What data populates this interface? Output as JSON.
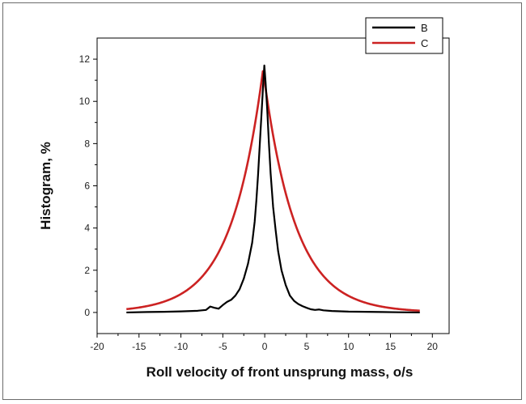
{
  "chart_data": {
    "type": "line",
    "xlabel": "Roll velocity of front unsprung mass, o/s",
    "ylabel": "Histogram, %",
    "xlim": [
      -20,
      22
    ],
    "ylim": [
      -1,
      13
    ],
    "xticks": [
      -20,
      -15,
      -10,
      -5,
      0,
      5,
      10,
      15,
      20
    ],
    "yticks": [
      0,
      2,
      4,
      6,
      8,
      10,
      12
    ],
    "grid": false,
    "legend_position": "top-right",
    "series": [
      {
        "name": "B",
        "color": "#000000",
        "x": [
          -16.5,
          -14,
          -12,
          -10,
          -8,
          -7,
          -6.5,
          -6,
          -5.5,
          -5,
          -4.5,
          -4,
          -3.5,
          -3,
          -2.5,
          -2,
          -1.5,
          -1.2,
          -1,
          -0.8,
          -0.6,
          -0.4,
          -0.2,
          -0.05,
          0.1,
          0.3,
          0.5,
          0.7,
          1,
          1.3,
          1.6,
          2,
          2.5,
          3,
          3.5,
          4,
          4.5,
          5,
          5.5,
          6,
          6.5,
          7,
          8,
          10,
          12,
          14,
          16,
          18.5
        ],
        "y": [
          0,
          0.02,
          0.03,
          0.05,
          0.08,
          0.12,
          0.28,
          0.22,
          0.18,
          0.35,
          0.5,
          0.6,
          0.8,
          1.1,
          1.6,
          2.3,
          3.3,
          4.3,
          5.3,
          6.5,
          7.9,
          9.3,
          10.7,
          11.7,
          10.9,
          9.6,
          8.0,
          6.6,
          5.0,
          3.9,
          2.9,
          2.0,
          1.3,
          0.8,
          0.55,
          0.4,
          0.3,
          0.22,
          0.15,
          0.12,
          0.14,
          0.1,
          0.07,
          0.04,
          0.03,
          0.02,
          0.01,
          0.0
        ]
      },
      {
        "name": "C",
        "color": "#cc2222",
        "fn": "laplace",
        "peak_y": 11.5,
        "center_x": -0.2,
        "scale": 3.8,
        "x_range": [
          -16.5,
          18.5
        ]
      }
    ]
  }
}
